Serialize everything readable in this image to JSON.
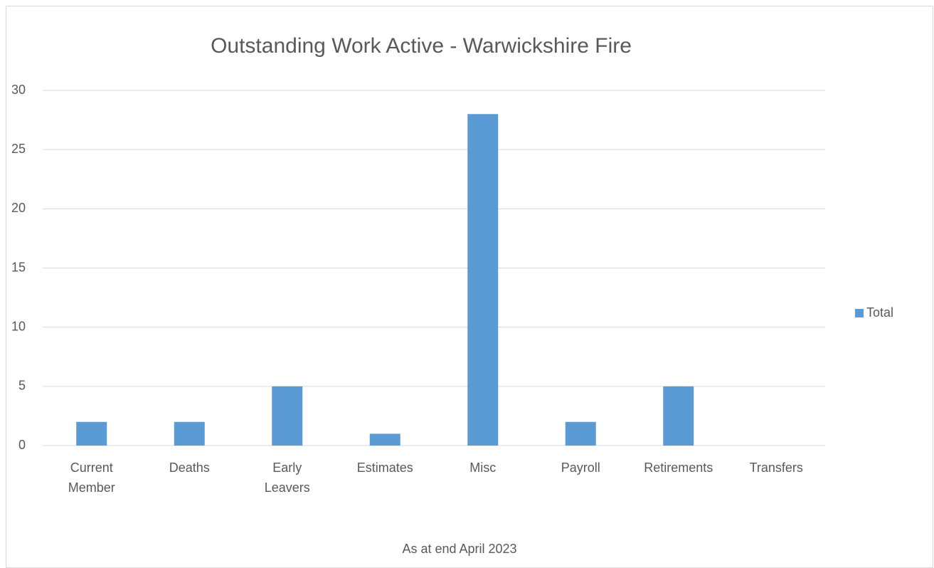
{
  "chart_data": {
    "type": "bar",
    "title": "Outstanding Work Active -  Warwickshire Fire",
    "x_label": "As at end April 2023",
    "categories": [
      "Current Member",
      "Deaths",
      "Early Leavers",
      "Estimates",
      "Misc",
      "Payroll",
      "Retirements",
      "Transfers"
    ],
    "series": [
      {
        "name": "Total",
        "color": "#5b9bd5",
        "values": [
          2,
          2,
          5,
          1,
          28,
          2,
          5,
          0
        ]
      }
    ],
    "ylim": [
      0,
      30
    ],
    "yticks": [
      0,
      5,
      10,
      15,
      20,
      25,
      30
    ],
    "grid": true,
    "legend": "right"
  }
}
